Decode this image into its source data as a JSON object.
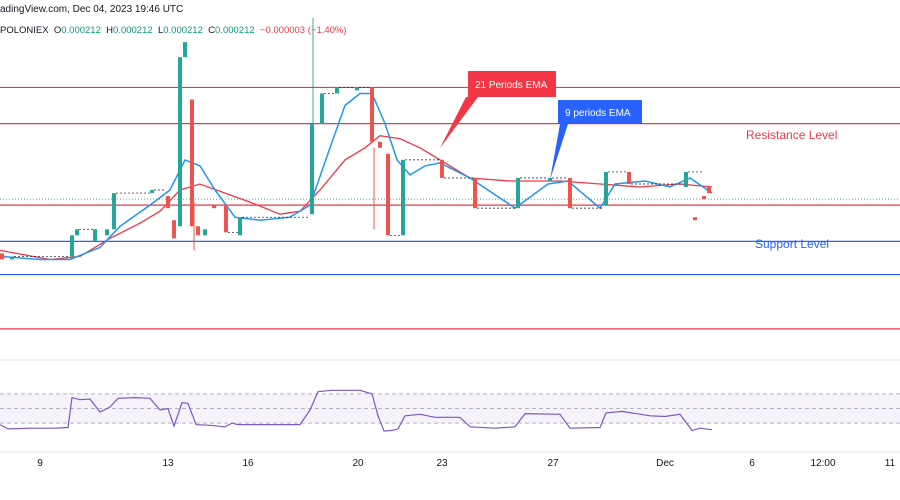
{
  "header": {
    "source_line": "adingView.com, Dec 04, 2023 19:46 UTC",
    "exchange": "POLONIEX",
    "o_label": "O",
    "o_value": "0.000212",
    "h_label": "H",
    "h_value": "0.000212",
    "l_label": "L",
    "l_value": "0.000212",
    "c_label": "C",
    "c_value": "0.000212",
    "change": "−0.000003 (−1.40%)"
  },
  "chart_data": {
    "type": "candlestick",
    "x_ticks": [
      "9",
      "13",
      "16",
      "20",
      "23",
      "27",
      "Dec",
      "6",
      "12:00",
      "11"
    ],
    "horizontal_levels": [
      {
        "name": "top-red-1",
        "value": 0.000252,
        "color": "#f23645"
      },
      {
        "name": "top-red-2",
        "value": 0.00024,
        "color": "#f23645"
      },
      {
        "name": "mid-red",
        "value": 0.000213,
        "color": "#f23645"
      },
      {
        "name": "support-blue-1",
        "value": 0.000201,
        "color": "#2962ff"
      },
      {
        "name": "support-blue-2",
        "value": 0.00019,
        "color": "#2962ff"
      },
      {
        "name": "bottom-red",
        "value": 0.000172,
        "color": "#f23645"
      }
    ],
    "ylim": [
      0.000165,
      0.000275
    ],
    "annotations": [
      {
        "text": "21 Periods EMA",
        "color": "#f23645",
        "text_color": "#ffffff"
      },
      {
        "text": "9 periods EMA",
        "color": "#2962ff",
        "text_color": "#ffffff"
      },
      {
        "text": "Resistance Level",
        "color": "#f23645"
      },
      {
        "text": "Support Level",
        "color": "#2962ff"
      }
    ],
    "candles": [
      {
        "x": 0,
        "o": 0.000197,
        "c": 0.000195
      },
      {
        "x": 10,
        "o": 0.000195,
        "c": 0.000196
      },
      {
        "x": 70,
        "o": 0.000196,
        "c": 0.000203
      },
      {
        "x": 75,
        "o": 0.000203,
        "c": 0.000205
      },
      {
        "x": 93,
        "o": 0.000201,
        "c": 0.000205
      },
      {
        "x": 105,
        "o": 0.000203,
        "c": 0.000205
      },
      {
        "x": 112,
        "o": 0.000205,
        "c": 0.000217
      },
      {
        "x": 150,
        "o": 0.000217,
        "c": 0.000218
      },
      {
        "x": 166,
        "o": 0.000216,
        "c": 0.000212
      },
      {
        "x": 172,
        "o": 0.000208,
        "c": 0.000202
      },
      {
        "x": 178,
        "o": 0.000206,
        "c": 0.000262
      },
      {
        "x": 183,
        "o": 0.000262,
        "c": 0.000267
      },
      {
        "x": 190,
        "o": 0.000248,
        "c": 0.000206
      },
      {
        "x": 196,
        "o": 0.000206,
        "c": 0.000203
      },
      {
        "x": 203,
        "o": 0.000203,
        "c": 0.000205
      },
      {
        "x": 212,
        "o": 0.000213,
        "c": 0.000212
      },
      {
        "x": 224,
        "o": 0.000213,
        "c": 0.000204
      },
      {
        "x": 238,
        "o": 0.000203,
        "c": 0.000209
      },
      {
        "x": 310,
        "o": 0.00021,
        "c": 0.00024
      },
      {
        "x": 320,
        "o": 0.00024,
        "c": 0.00025
      },
      {
        "x": 335,
        "o": 0.00025,
        "c": 0.000252
      },
      {
        "x": 355,
        "o": 0.000251,
        "c": 0.000252
      },
      {
        "x": 370,
        "o": 0.000252,
        "c": 0.000234
      },
      {
        "x": 378,
        "o": 0.000234,
        "c": 0.000232
      },
      {
        "x": 386,
        "o": 0.00023,
        "c": 0.000203
      },
      {
        "x": 401,
        "o": 0.000203,
        "c": 0.000228
      },
      {
        "x": 440,
        "o": 0.000228,
        "c": 0.000222
      },
      {
        "x": 473,
        "o": 0.000222,
        "c": 0.000212
      },
      {
        "x": 516,
        "o": 0.000212,
        "c": 0.000222
      },
      {
        "x": 548,
        "o": 0.000221,
        "c": 0.000222
      },
      {
        "x": 568,
        "o": 0.000222,
        "c": 0.000212
      },
      {
        "x": 604,
        "o": 0.000213,
        "c": 0.000224
      },
      {
        "x": 627,
        "o": 0.000224,
        "c": 0.00022
      },
      {
        "x": 684,
        "o": 0.000219,
        "c": 0.000224
      },
      {
        "x": 702,
        "o": 0.000216,
        "c": 0.000215
      },
      {
        "x": 707,
        "o": 0.000219,
        "c": 0.000217
      },
      {
        "x": 693,
        "o": 0.000209,
        "c": 0.000208
      }
    ],
    "ema9": [
      [
        0,
        0.000196
      ],
      [
        40,
        0.000195
      ],
      [
        70,
        0.000195
      ],
      [
        100,
        0.000199
      ],
      [
        120,
        0.000206
      ],
      [
        150,
        0.000213
      ],
      [
        170,
        0.000218
      ],
      [
        185,
        0.000228
      ],
      [
        200,
        0.000226
      ],
      [
        215,
        0.000218
      ],
      [
        235,
        0.000209
      ],
      [
        260,
        0.000208
      ],
      [
        290,
        0.000209
      ],
      [
        310,
        0.000213
      ],
      [
        330,
        0.000232
      ],
      [
        345,
        0.000246
      ],
      [
        360,
        0.00025
      ],
      [
        372,
        0.00025
      ],
      [
        385,
        0.00024
      ],
      [
        397,
        0.000228
      ],
      [
        410,
        0.000223
      ],
      [
        425,
        0.000226
      ],
      [
        440,
        0.000227
      ],
      [
        470,
        0.000222
      ],
      [
        515,
        0.000212
      ],
      [
        548,
        0.00022
      ],
      [
        568,
        0.000221
      ],
      [
        600,
        0.000212
      ],
      [
        615,
        0.00022
      ],
      [
        645,
        0.000221
      ],
      [
        670,
        0.000219
      ],
      [
        690,
        0.000222
      ],
      [
        712,
        0.000217
      ]
    ],
    "ema21": [
      [
        0,
        0.000198
      ],
      [
        50,
        0.000195
      ],
      [
        80,
        0.000196
      ],
      [
        110,
        0.000202
      ],
      [
        140,
        0.000207
      ],
      [
        160,
        0.000211
      ],
      [
        180,
        0.000218
      ],
      [
        200,
        0.00022
      ],
      [
        225,
        0.000217
      ],
      [
        250,
        0.000214
      ],
      [
        280,
        0.00021
      ],
      [
        300,
        0.000211
      ],
      [
        320,
        0.000218
      ],
      [
        345,
        0.000228
      ],
      [
        365,
        0.000232
      ],
      [
        380,
        0.000236
      ],
      [
        400,
        0.000235
      ],
      [
        420,
        0.000232
      ],
      [
        445,
        0.000227
      ],
      [
        470,
        0.000222
      ],
      [
        510,
        0.000221
      ],
      [
        560,
        0.000221
      ],
      [
        600,
        0.00022
      ],
      [
        640,
        0.000219
      ],
      [
        680,
        0.00022
      ],
      [
        712,
        0.000219
      ]
    ],
    "rsi": {
      "ylim": [
        0,
        100
      ],
      "bands": [
        70,
        50,
        30
      ],
      "values": [
        [
          0,
          28
        ],
        [
          8,
          22
        ],
        [
          30,
          23
        ],
        [
          55,
          23
        ],
        [
          68,
          24
        ],
        [
          72,
          65
        ],
        [
          80,
          62
        ],
        [
          90,
          63
        ],
        [
          100,
          45
        ],
        [
          110,
          52
        ],
        [
          118,
          64
        ],
        [
          135,
          65
        ],
        [
          150,
          64
        ],
        [
          160,
          48
        ],
        [
          168,
          50
        ],
        [
          174,
          26
        ],
        [
          182,
          58
        ],
        [
          188,
          57
        ],
        [
          196,
          28
        ],
        [
          210,
          27
        ],
        [
          225,
          25
        ],
        [
          232,
          30
        ],
        [
          238,
          28
        ],
        [
          300,
          28
        ],
        [
          310,
          48
        ],
        [
          318,
          73
        ],
        [
          332,
          75
        ],
        [
          360,
          75
        ],
        [
          372,
          70
        ],
        [
          378,
          40
        ],
        [
          384,
          19
        ],
        [
          392,
          20
        ],
        [
          398,
          22
        ],
        [
          405,
          40
        ],
        [
          420,
          42
        ],
        [
          435,
          38
        ],
        [
          460,
          38
        ],
        [
          470,
          25
        ],
        [
          495,
          23
        ],
        [
          515,
          25
        ],
        [
          525,
          43
        ],
        [
          560,
          42
        ],
        [
          570,
          23
        ],
        [
          600,
          24
        ],
        [
          606,
          44
        ],
        [
          622,
          46
        ],
        [
          650,
          40
        ],
        [
          665,
          39
        ],
        [
          680,
          42
        ],
        [
          692,
          20
        ],
        [
          700,
          23
        ],
        [
          712,
          21
        ]
      ]
    }
  }
}
